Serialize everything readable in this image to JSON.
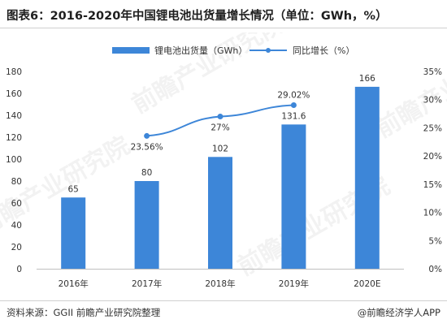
{
  "title": "图表6：2016-2020年中国锂电池出货量增长情况（单位：GWh，%）",
  "source": "资料来源：GGII 前瞻产业研究院整理",
  "brand": "@前瞻经济学人APP",
  "watermark": "前瞻产业研究院",
  "colors": {
    "bar": "#3d86d8",
    "line": "#3d86d8",
    "axis_text": "#333333",
    "grid": "#e6e6e6"
  },
  "chart_data": {
    "type": "bar",
    "categories": [
      "2016年",
      "2017年",
      "2018年",
      "2019年",
      "2020E"
    ],
    "series": [
      {
        "name": "锂电池出货量（GWh）",
        "type": "bar",
        "axis": "left",
        "values": [
          65,
          80,
          102,
          131.6,
          166
        ]
      },
      {
        "name": "同比增长（%）",
        "type": "line",
        "axis": "right",
        "values": [
          null,
          23.56,
          27,
          29.02,
          null
        ],
        "labels": [
          "",
          "23.56%",
          "27%",
          "29.02%",
          ""
        ]
      }
    ],
    "bar_labels": [
      "65",
      "80",
      "102",
      "131.6",
      "166"
    ],
    "ylim_left": [
      0,
      180
    ],
    "yticks_left": [
      "0",
      "20",
      "40",
      "60",
      "80",
      "100",
      "120",
      "140",
      "160",
      "180"
    ],
    "ylim_right": [
      0,
      35
    ],
    "yticks_right": [
      "0%",
      "5%",
      "10%",
      "15%",
      "20%",
      "25%",
      "30%",
      "35%"
    ],
    "legend_position": "top-center",
    "grid": false
  }
}
